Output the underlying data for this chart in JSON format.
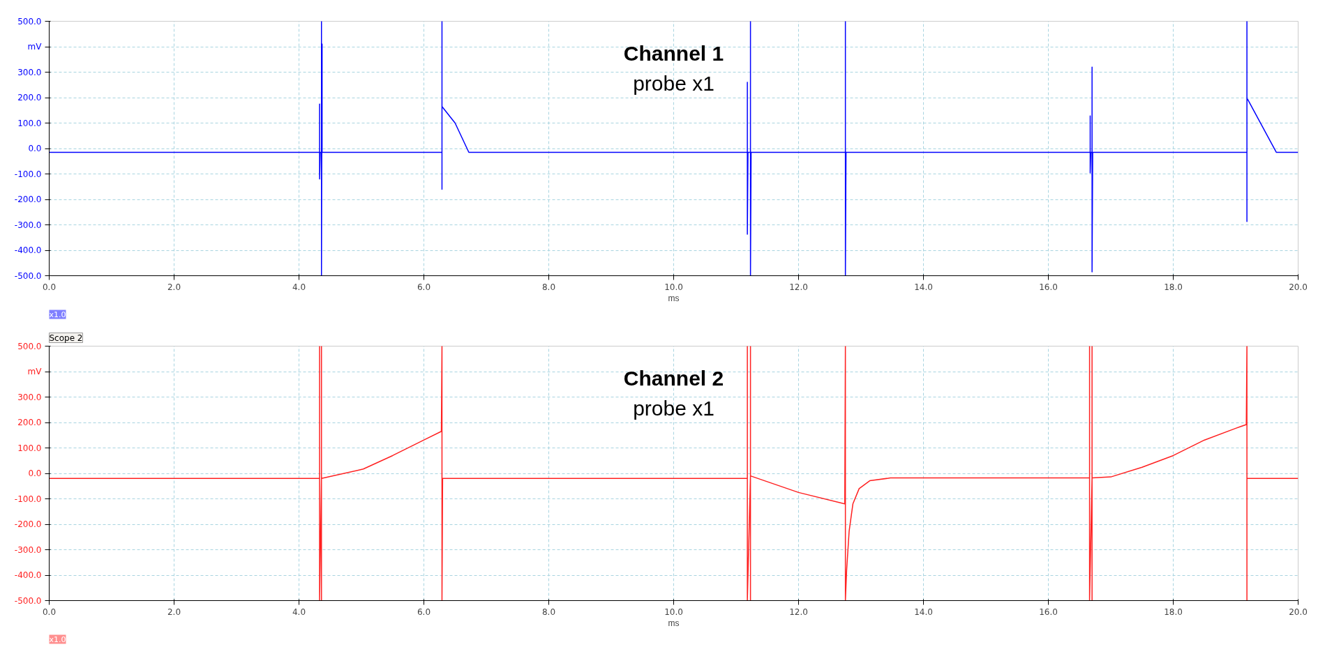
{
  "chart_data": [
    {
      "type": "line",
      "title": "Channel 1",
      "subtitle": "probe x1",
      "xlabel": "ms",
      "annotations": [
        "x1.0"
      ],
      "xlim": [
        0,
        20
      ],
      "xticks": [
        {
          "value": 0,
          "label": "0.0"
        },
        {
          "value": 2,
          "label": "2.0"
        },
        {
          "value": 4,
          "label": "4.0"
        },
        {
          "value": 6,
          "label": "6.0"
        },
        {
          "value": 8,
          "label": "8.0"
        },
        {
          "value": 10,
          "label": "10.0"
        },
        {
          "value": 12,
          "label": "12.0"
        },
        {
          "value": 14,
          "label": "14.0"
        },
        {
          "value": 16,
          "label": "16.0"
        },
        {
          "value": 18,
          "label": "18.0"
        },
        {
          "value": 20,
          "label": "20.0"
        }
      ],
      "ylim": [
        -500,
        500
      ],
      "yticks": [
        {
          "value": 500,
          "label": "500.0"
        },
        {
          "value": 400,
          "label": "mV"
        },
        {
          "value": 300,
          "label": "300.0"
        },
        {
          "value": 200,
          "label": "200.0"
        },
        {
          "value": 100,
          "label": "100.0"
        },
        {
          "value": 0,
          "label": "0.0"
        },
        {
          "value": -100,
          "label": "-100.0"
        },
        {
          "value": -200,
          "label": "-200.0"
        },
        {
          "value": -300,
          "label": "-300.0"
        },
        {
          "value": -400,
          "label": "-400.0"
        },
        {
          "value": -500,
          "label": "-500.0"
        }
      ],
      "grid": true,
      "line_style": "solid",
      "series": [
        {
          "color": "#0000ff",
          "x": [
            0,
            4.33,
            4.33,
            4.33,
            4.34,
            4.36,
            4.36,
            4.36,
            4.37,
            4.37,
            6.29,
            6.29,
            6.29,
            6.29,
            6.5,
            6.72,
            11.18,
            11.18,
            11.18,
            11.19,
            11.23,
            11.23,
            11.23,
            11.24,
            12.75,
            12.75,
            12.75,
            12.76,
            16.67,
            16.67,
            16.67,
            16.68,
            16.7,
            16.7,
            16.7,
            16.71,
            19.18,
            19.18,
            19.18,
            19.18,
            19.19,
            19.65,
            20
          ],
          "values": [
            -15,
            -15,
            175,
            -120,
            -15,
            -15,
            500,
            -500,
            410,
            -15,
            -15,
            500,
            -160,
            165,
            100,
            -15,
            -15,
            260,
            -337,
            -15,
            -15,
            500,
            -500,
            -15,
            -15,
            500,
            -500,
            -15,
            -15,
            128,
            -96,
            -15,
            -15,
            320,
            -485,
            -15,
            -15,
            500,
            -287,
            195,
            194,
            -15,
            -15
          ]
        }
      ]
    },
    {
      "type": "line",
      "title": "Channel 2",
      "subtitle": "probe x1",
      "xlabel": "ms",
      "annotations": [
        "x1.0",
        "Scope 2"
      ],
      "xlim": [
        0,
        20
      ],
      "xticks": [
        {
          "value": 0,
          "label": "0.0"
        },
        {
          "value": 2,
          "label": "2.0"
        },
        {
          "value": 4,
          "label": "4.0"
        },
        {
          "value": 6,
          "label": "6.0"
        },
        {
          "value": 8,
          "label": "8.0"
        },
        {
          "value": 10,
          "label": "10.0"
        },
        {
          "value": 12,
          "label": "12.0"
        },
        {
          "value": 14,
          "label": "14.0"
        },
        {
          "value": 16,
          "label": "16.0"
        },
        {
          "value": 18,
          "label": "18.0"
        },
        {
          "value": 20,
          "label": "20.0"
        }
      ],
      "ylim": [
        -500,
        500
      ],
      "yticks": [
        {
          "value": 500,
          "label": "500.0"
        },
        {
          "value": 400,
          "label": "mV"
        },
        {
          "value": 300,
          "label": "300.0"
        },
        {
          "value": 200,
          "label": "200.0"
        },
        {
          "value": 100,
          "label": "100.0"
        },
        {
          "value": 0,
          "label": "0.0"
        },
        {
          "value": -100,
          "label": "-100.0"
        },
        {
          "value": -200,
          "label": "-200.0"
        },
        {
          "value": -300,
          "label": "-300.0"
        },
        {
          "value": -400,
          "label": "-400.0"
        },
        {
          "value": -500,
          "label": "-500.0"
        }
      ],
      "grid": true,
      "line_style": "solid",
      "series": [
        {
          "color": "#ff2020",
          "x": [
            0,
            4.33,
            4.33,
            4.33,
            4.36,
            4.36,
            4.36,
            4.36,
            5.03,
            5.5,
            6.0,
            6.28,
            6.29,
            6.29,
            6.3,
            11.18,
            11.18,
            11.18,
            11.23,
            11.23,
            11.23,
            11.23,
            12.0,
            12.74,
            12.75,
            12.75,
            12.77,
            12.81,
            12.87,
            12.97,
            13.14,
            13.47,
            16.66,
            16.66,
            16.66,
            16.7,
            16.7,
            16.7,
            16.7,
            17.0,
            17.5,
            18.0,
            18.5,
            19.0,
            19.17,
            19.18,
            19.18,
            19.18,
            19.19,
            20
          ],
          "values": [
            -20,
            -20,
            500,
            -500,
            -20,
            500,
            -500,
            -20,
            17,
            70,
            131,
            165,
            500,
            -500,
            -20,
            -20,
            500,
            -500,
            -10,
            500,
            -500,
            -10,
            -75,
            -120,
            500,
            -500,
            -380,
            -227,
            -120,
            -60,
            -29,
            -18,
            -18,
            500,
            -500,
            -18,
            500,
            -500,
            -18,
            -14,
            24,
            70,
            131,
            177,
            192,
            500,
            -500,
            -20,
            -20,
            -20
          ]
        }
      ]
    }
  ]
}
